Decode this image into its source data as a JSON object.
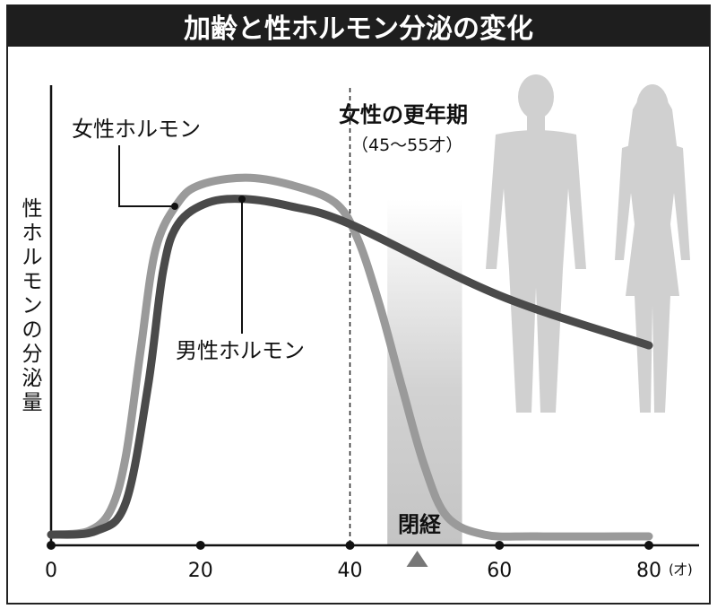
{
  "chart_data": {
    "type": "line",
    "title": "加齢と性ホルモン分泌の変化",
    "ylabel": "性ホルモンの分泌量",
    "x_unit": "(才)",
    "xlim": [
      0,
      80
    ],
    "ylim": [
      0,
      100
    ],
    "x_ticks": [
      0,
      20,
      40,
      60,
      80
    ],
    "x_tick_labels": [
      "0",
      "20",
      "40",
      "60",
      "80"
    ],
    "series": [
      {
        "name": "女性ホルモン",
        "color": "#9a9a9a",
        "points": [
          [
            0,
            3
          ],
          [
            5,
            4
          ],
          [
            8,
            10
          ],
          [
            10,
            25
          ],
          [
            12,
            55
          ],
          [
            14,
            83
          ],
          [
            17,
            96
          ],
          [
            20,
            101
          ],
          [
            26,
            103
          ],
          [
            32,
            101
          ],
          [
            38,
            96
          ],
          [
            41,
            86
          ],
          [
            44,
            67
          ],
          [
            47,
            44
          ],
          [
            50,
            22
          ],
          [
            53,
            8
          ],
          [
            58,
            3
          ],
          [
            65,
            2.5
          ],
          [
            80,
            2.5
          ]
        ]
      },
      {
        "name": "男性ホルモン",
        "color": "#4a4a4a",
        "points": [
          [
            0,
            3
          ],
          [
            6,
            4
          ],
          [
            10,
            12
          ],
          [
            13,
            45
          ],
          [
            15,
            77
          ],
          [
            17,
            90
          ],
          [
            21,
            96
          ],
          [
            26,
            97
          ],
          [
            32,
            95
          ],
          [
            40,
            90
          ],
          [
            60,
            70
          ],
          [
            80,
            56
          ]
        ]
      }
    ],
    "annotations": {
      "female_label": "女性ホルモン",
      "male_label": "男性ホルモン",
      "menopause_title": "女性の更年期",
      "menopause_range_text": "（45〜55才）",
      "menopause_range": [
        45,
        55
      ],
      "menopause_marker_x": 40,
      "menses_end_label": "閉経",
      "menses_end_x": 49
    },
    "grid": false,
    "legend": "none"
  }
}
